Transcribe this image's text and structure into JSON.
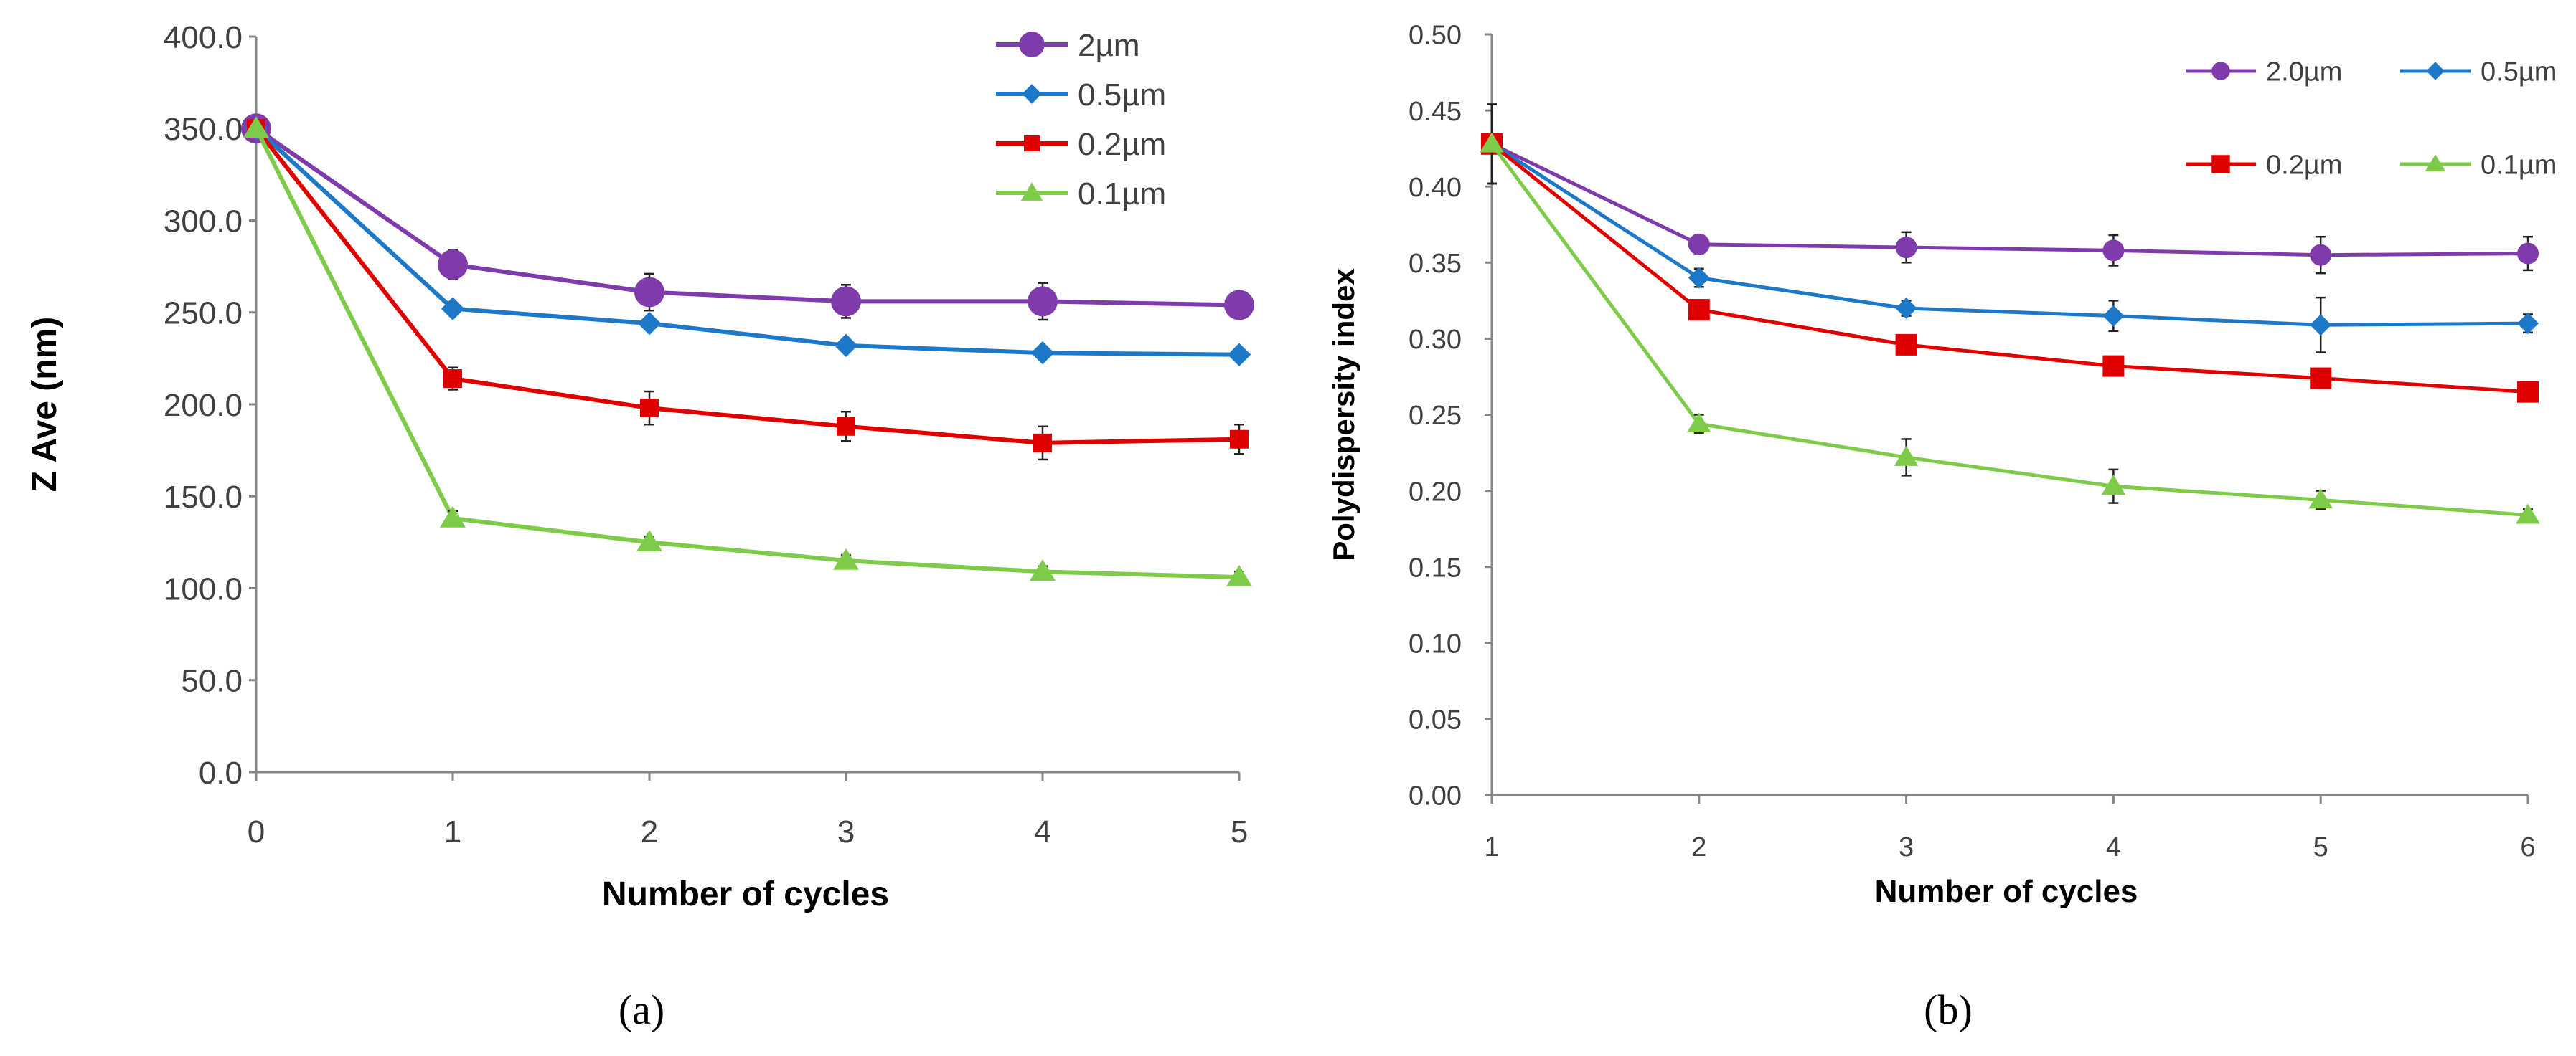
{
  "figure": {
    "caption_a": "(a)",
    "caption_b": "(b)"
  },
  "colors": {
    "purple": "#7f3bab",
    "blue": "#1e78c8",
    "red": "#e00000",
    "green": "#7ecb4a"
  },
  "chart_data": [
    {
      "id": "a",
      "type": "line",
      "xlabel": "Number of cycles",
      "ylabel": "Z Ave (nm)",
      "x": [
        0,
        1,
        2,
        3,
        4,
        5
      ],
      "xlim": [
        0,
        5
      ],
      "ylim": [
        0,
        400
      ],
      "yticks": [
        "0.0",
        "50.0",
        "100.0",
        "150.0",
        "200.0",
        "250.0",
        "300.0",
        "350.0",
        "400.0"
      ],
      "xticks": [
        "0",
        "1",
        "2",
        "3",
        "4",
        "5"
      ],
      "legend_position": "top-right",
      "series": [
        {
          "name": "2µm",
          "color": "#7f3bab",
          "marker": "circle",
          "values": [
            350,
            276,
            261,
            256,
            256,
            254
          ],
          "errors": [
            0,
            8,
            10,
            9,
            10,
            7
          ]
        },
        {
          "name": "0.5µm",
          "color": "#1e78c8",
          "marker": "diamond",
          "values": [
            350,
            252,
            244,
            232,
            228,
            227
          ],
          "errors": [
            0,
            3,
            3,
            3,
            3,
            3
          ]
        },
        {
          "name": "0.2µm",
          "color": "#e00000",
          "marker": "square",
          "values": [
            350,
            214,
            198,
            188,
            179,
            181
          ],
          "errors": [
            0,
            6,
            9,
            8,
            9,
            8
          ]
        },
        {
          "name": "0.1µm",
          "color": "#7ecb4a",
          "marker": "triangle",
          "values": [
            350,
            138,
            125,
            115,
            109,
            106
          ],
          "errors": [
            0,
            4,
            3,
            3,
            3,
            3
          ]
        }
      ]
    },
    {
      "id": "b",
      "type": "line",
      "xlabel": "Number of cycles",
      "ylabel": "Polydispersity index",
      "x": [
        1,
        2,
        3,
        4,
        5,
        6
      ],
      "xlim": [
        1,
        6
      ],
      "ylim": [
        0,
        0.5
      ],
      "yticks": [
        "0.00",
        "0.05",
        "0.10",
        "0.15",
        "0.20",
        "0.25",
        "0.30",
        "0.35",
        "0.40",
        "0.45",
        "0.50"
      ],
      "xticks": [
        "1",
        "2",
        "3",
        "4",
        "5",
        "6"
      ],
      "legend_position": "top-right",
      "series": [
        {
          "name": "2.0µm",
          "color": "#7f3bab",
          "marker": "circle",
          "values": [
            0.428,
            0.362,
            0.36,
            0.358,
            0.355,
            0.356
          ],
          "errors": [
            0.026,
            0.006,
            0.01,
            0.01,
            0.012,
            0.011
          ]
        },
        {
          "name": "0.5µm",
          "color": "#1e78c8",
          "marker": "diamond",
          "values": [
            0.428,
            0.34,
            0.32,
            0.315,
            0.309,
            0.31
          ],
          "errors": [
            0.026,
            0.006,
            0.005,
            0.01,
            0.018,
            0.006
          ]
        },
        {
          "name": "0.2µm",
          "color": "#e00000",
          "marker": "square",
          "values": [
            0.428,
            0.319,
            0.296,
            0.282,
            0.274,
            0.265
          ],
          "errors": [
            0.026,
            0.006,
            0.005,
            0.005,
            0.005,
            0.005
          ]
        },
        {
          "name": "0.1µm",
          "color": "#7ecb4a",
          "marker": "triangle",
          "values": [
            0.428,
            0.244,
            0.222,
            0.203,
            0.194,
            0.184
          ],
          "errors": [
            0.026,
            0.006,
            0.012,
            0.011,
            0.006,
            0.004
          ]
        }
      ]
    }
  ]
}
